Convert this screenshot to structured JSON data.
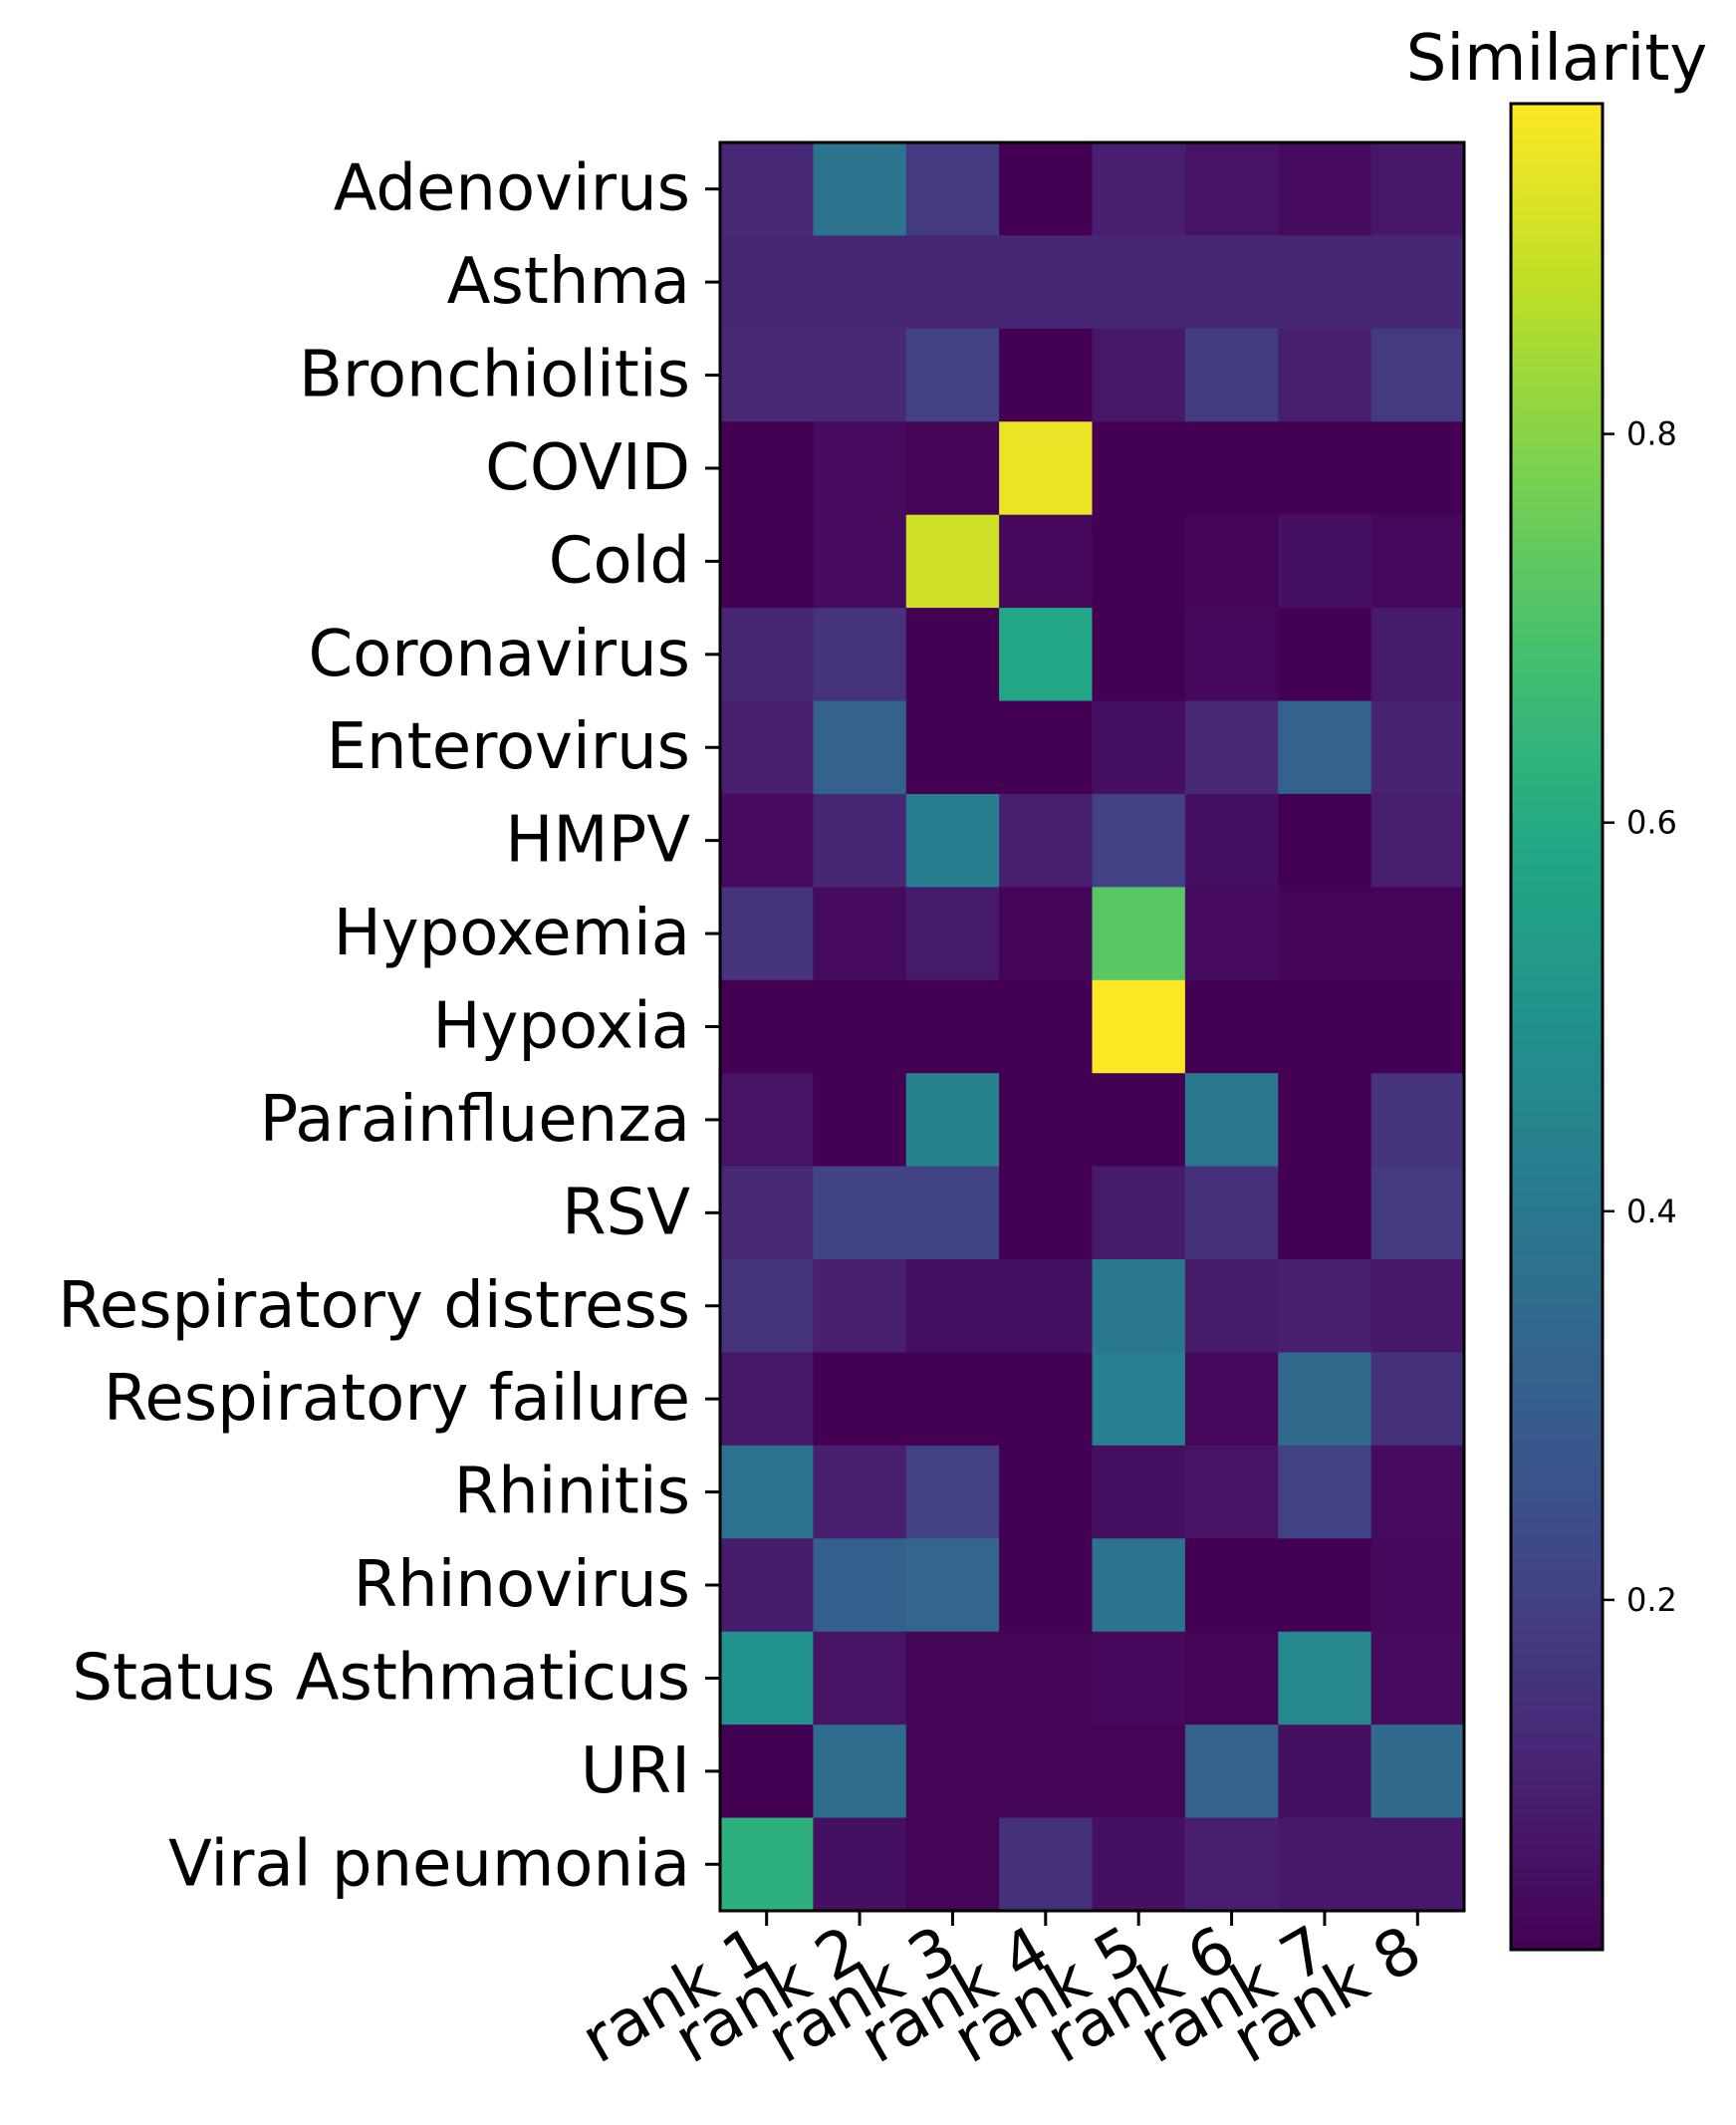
{
  "chart_data": {
    "type": "heatmap",
    "colormap": "viridis",
    "x_categories": [
      "rank 1",
      "rank 2",
      "rank 3",
      "rank 4",
      "rank 5",
      "rank 6",
      "rank 7",
      "rank 8"
    ],
    "y_categories": [
      "Adenovirus",
      "Asthma",
      "Bronchiolitis",
      "COVID",
      "Cold",
      "Coronavirus",
      "Enterovirus",
      "HMPV",
      "Hypoxemia",
      "Hypoxia",
      "Parainfluenza",
      "RSV",
      "Respiratory distress",
      "Respiratory failure",
      "Rhinitis",
      "Rhinovirus",
      "Status Asthmaticus",
      "URI",
      "Viral pneumonia"
    ],
    "values": [
      [
        0.13,
        0.38,
        0.18,
        0.02,
        0.1,
        0.07,
        0.05,
        0.08
      ],
      [
        0.12,
        0.12,
        0.12,
        0.12,
        0.12,
        0.12,
        0.12,
        0.12
      ],
      [
        0.13,
        0.13,
        0.2,
        0.02,
        0.08,
        0.19,
        0.1,
        0.18
      ],
      [
        0.02,
        0.05,
        0.03,
        0.94,
        0.02,
        0.02,
        0.02,
        0.02
      ],
      [
        0.02,
        0.05,
        0.9,
        0.04,
        0.02,
        0.03,
        0.06,
        0.04
      ],
      [
        0.12,
        0.16,
        0.02,
        0.58,
        0.02,
        0.04,
        0.02,
        0.09
      ],
      [
        0.1,
        0.32,
        0.02,
        0.02,
        0.06,
        0.13,
        0.32,
        0.11
      ],
      [
        0.05,
        0.12,
        0.42,
        0.1,
        0.2,
        0.06,
        0.02,
        0.1
      ],
      [
        0.16,
        0.05,
        0.09,
        0.03,
        0.72,
        0.05,
        0.03,
        0.03
      ],
      [
        0.02,
        0.02,
        0.02,
        0.02,
        0.97,
        0.02,
        0.02,
        0.02
      ],
      [
        0.07,
        0.02,
        0.44,
        0.02,
        0.02,
        0.4,
        0.02,
        0.16
      ],
      [
        0.13,
        0.21,
        0.21,
        0.02,
        0.09,
        0.15,
        0.02,
        0.18
      ],
      [
        0.16,
        0.1,
        0.06,
        0.06,
        0.4,
        0.09,
        0.1,
        0.08
      ],
      [
        0.08,
        0.02,
        0.02,
        0.02,
        0.43,
        0.04,
        0.35,
        0.15
      ],
      [
        0.38,
        0.1,
        0.2,
        0.02,
        0.06,
        0.07,
        0.2,
        0.05
      ],
      [
        0.09,
        0.31,
        0.33,
        0.02,
        0.38,
        0.02,
        0.02,
        0.04
      ],
      [
        0.5,
        0.07,
        0.03,
        0.03,
        0.04,
        0.03,
        0.46,
        0.05
      ],
      [
        0.02,
        0.36,
        0.03,
        0.03,
        0.03,
        0.32,
        0.06,
        0.35
      ],
      [
        0.62,
        0.06,
        0.03,
        0.15,
        0.06,
        0.1,
        0.08,
        0.08
      ]
    ],
    "vmin": 0.02,
    "vmax": 0.97,
    "colorbar_ticks": [
      0.2,
      0.4,
      0.6,
      0.8
    ],
    "colorbar_labels": [
      "0.2",
      "0.4",
      "0.6",
      "0.8"
    ],
    "colorbar_title": "Similarity"
  }
}
